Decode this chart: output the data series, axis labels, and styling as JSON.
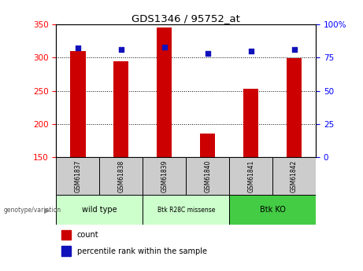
{
  "title": "GDS1346 / 95752_at",
  "samples": [
    "GSM61837",
    "GSM61838",
    "GSM61839",
    "GSM61840",
    "GSM61841",
    "GSM61842"
  ],
  "counts": [
    310,
    295,
    345,
    186,
    253,
    299
  ],
  "percentile_ranks": [
    82,
    81,
    83,
    78,
    80,
    81
  ],
  "ylim_left": [
    150,
    350
  ],
  "ylim_right": [
    0,
    100
  ],
  "yticks_left": [
    150,
    200,
    250,
    300,
    350
  ],
  "yticks_right": [
    0,
    25,
    50,
    75,
    100
  ],
  "ytick_labels_right": [
    "0",
    "25",
    "50",
    "75",
    "100%"
  ],
  "bar_color": "#cc0000",
  "dot_color": "#1111bb",
  "group_configs": [
    {
      "label": "wild type",
      "xstart": 0.5,
      "xend": 2.5,
      "color": "#ccffcc",
      "fontsize": 7
    },
    {
      "label": "Btk R28C missense",
      "xstart": 2.5,
      "xend": 4.5,
      "color": "#ccffcc",
      "fontsize": 5.5
    },
    {
      "label": "Btk KO",
      "xstart": 4.5,
      "xend": 6.5,
      "color": "#44cc44",
      "fontsize": 7
    }
  ],
  "xlabel_text": "genotype/variation",
  "legend_count_label": "count",
  "legend_pct_label": "percentile rank within the sample",
  "grid_color": "black",
  "background_color": "#ffffff",
  "label_box_color": "#cccccc",
  "bar_width": 0.35
}
